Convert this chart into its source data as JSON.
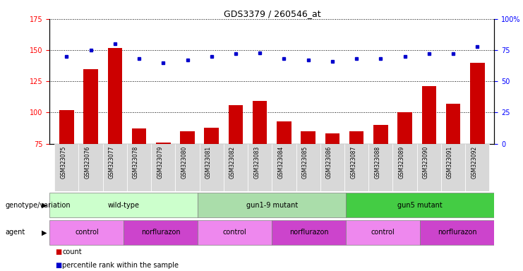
{
  "title": "GDS3379 / 260546_at",
  "samples": [
    "GSM323075",
    "GSM323076",
    "GSM323077",
    "GSM323078",
    "GSM323079",
    "GSM323080",
    "GSM323081",
    "GSM323082",
    "GSM323083",
    "GSM323084",
    "GSM323085",
    "GSM323086",
    "GSM323087",
    "GSM323088",
    "GSM323089",
    "GSM323090",
    "GSM323091",
    "GSM323092"
  ],
  "counts": [
    102,
    135,
    152,
    87,
    76,
    85,
    88,
    106,
    109,
    93,
    85,
    83,
    85,
    90,
    100,
    121,
    107,
    140
  ],
  "percentile_ranks": [
    70,
    75,
    80,
    68,
    65,
    67,
    70,
    72,
    73,
    68,
    67,
    66,
    68,
    68,
    70,
    72,
    72,
    78
  ],
  "bar_color": "#cc0000",
  "dot_color": "#0000cc",
  "ylim_left": [
    75,
    175
  ],
  "ylim_right": [
    0,
    100
  ],
  "yticks_left": [
    75,
    100,
    125,
    150,
    175
  ],
  "yticks_right": [
    0,
    25,
    50,
    75,
    100
  ],
  "genotype_groups": [
    {
      "label": "wild-type",
      "start": 0,
      "end": 6,
      "color": "#ccffcc"
    },
    {
      "label": "gun1-9 mutant",
      "start": 6,
      "end": 12,
      "color": "#aaddaa"
    },
    {
      "label": "gun5 mutant",
      "start": 12,
      "end": 18,
      "color": "#44cc44"
    }
  ],
  "agent_groups": [
    {
      "label": "control",
      "start": 0,
      "end": 3,
      "color": "#ee88ee"
    },
    {
      "label": "norflurazon",
      "start": 3,
      "end": 6,
      "color": "#cc44cc"
    },
    {
      "label": "control",
      "start": 6,
      "end": 9,
      "color": "#ee88ee"
    },
    {
      "label": "norflurazon",
      "start": 9,
      "end": 12,
      "color": "#cc44cc"
    },
    {
      "label": "control",
      "start": 12,
      "end": 15,
      "color": "#ee88ee"
    },
    {
      "label": "norflurazon",
      "start": 15,
      "end": 18,
      "color": "#cc44cc"
    }
  ],
  "legend_count_label": "count",
  "legend_percentile_label": "percentile rank within the sample",
  "genotype_label": "genotype/variation",
  "agent_label": "agent",
  "bg_color": "#ffffff",
  "sample_cell_color": "#d8d8d8",
  "chart_bg": "#ffffff"
}
